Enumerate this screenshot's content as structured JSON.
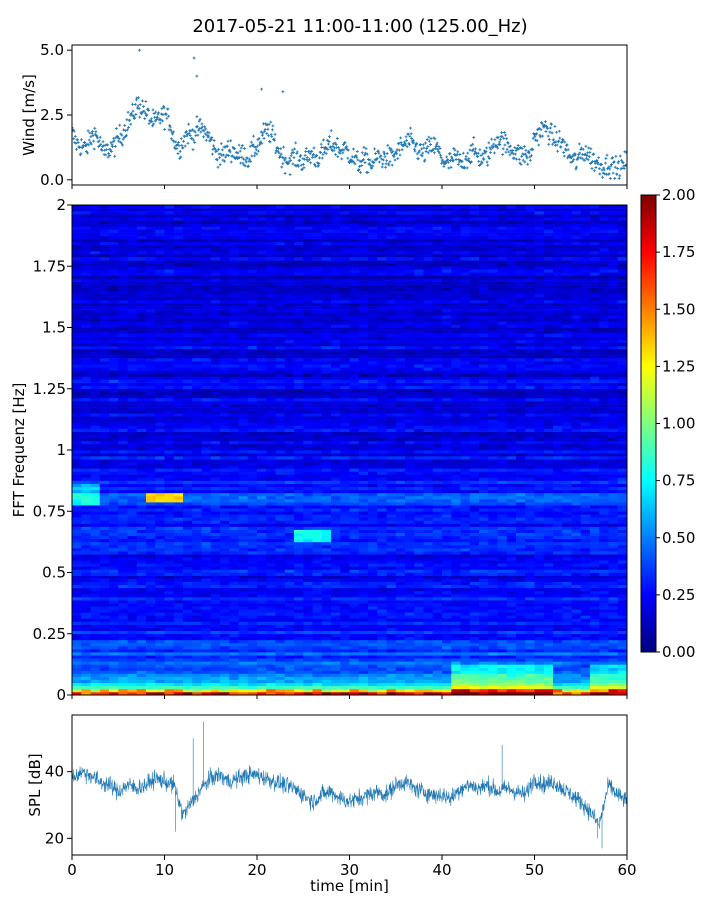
{
  "figure": {
    "title": "2017-05-21 11:00-11:00 (125.00_Hz)"
  },
  "chart_data": [
    {
      "type": "scatter",
      "name": "wind-panel",
      "ylabel": "Wind [m/s]",
      "xlim": [
        0,
        60
      ],
      "ylim": [
        -0.2,
        5.2
      ],
      "yticks": [
        0.0,
        2.5,
        5.0
      ],
      "ytick_labels": [
        "0.0",
        "2.5",
        "5.0"
      ],
      "marker": "+",
      "color": "#1f77b4",
      "x": [
        0,
        0.5,
        1,
        1.5,
        2,
        2.5,
        3,
        3.5,
        4,
        4.5,
        5,
        5.5,
        6,
        6.5,
        7,
        7.5,
        8,
        8.5,
        9,
        9.5,
        10,
        10.5,
        11,
        11.5,
        12,
        12.5,
        13,
        13.5,
        14,
        14.5,
        15,
        15.5,
        16,
        16.5,
        17,
        17.5,
        18,
        18.5,
        19,
        19.5,
        20,
        20.5,
        21,
        21.5,
        22,
        22.5,
        23,
        23.5,
        24,
        24.5,
        25,
        25.5,
        26,
        26.5,
        27,
        27.5,
        28,
        28.5,
        29,
        29.5,
        30,
        30.5,
        31,
        31.5,
        32,
        32.5,
        33,
        33.5,
        34,
        34.5,
        35,
        35.5,
        36,
        36.5,
        37,
        37.5,
        38,
        38.5,
        39,
        39.5,
        40,
        40.5,
        41,
        41.5,
        42,
        42.5,
        43,
        43.5,
        44,
        44.5,
        45,
        45.5,
        46,
        46.5,
        47,
        47.5,
        48,
        48.5,
        49,
        49.5,
        50,
        50.5,
        51,
        51.5,
        52,
        52.5,
        53,
        53.5,
        54,
        54.5,
        55,
        55.5,
        56,
        56.5,
        57,
        57.5,
        58,
        58.5,
        59,
        59.5,
        60
      ],
      "y": [
        1.8,
        1.4,
        1.3,
        1.2,
        1.6,
        1.8,
        1.4,
        1.0,
        1.2,
        1.3,
        1.6,
        1.8,
        2.2,
        2.4,
        2.9,
        2.8,
        2.6,
        2.3,
        2.2,
        2.4,
        2.5,
        2.3,
        1.6,
        1.2,
        1.5,
        1.8,
        1.7,
        1.9,
        2.0,
        1.8,
        1.5,
        1.1,
        0.9,
        1.0,
        1.2,
        1.1,
        0.9,
        1.0,
        0.8,
        1.1,
        1.3,
        1.6,
        1.9,
        1.8,
        1.4,
        1.0,
        0.8,
        0.7,
        0.9,
        0.8,
        0.7,
        0.9,
        1.0,
        0.8,
        1.0,
        1.2,
        1.4,
        1.3,
        1.1,
        1.2,
        1.0,
        0.8,
        0.6,
        0.8,
        0.7,
        0.6,
        0.9,
        0.8,
        0.9,
        0.8,
        1.0,
        1.2,
        1.4,
        1.5,
        1.3,
        1.1,
        1.0,
        1.2,
        1.3,
        1.2,
        0.8,
        0.6,
        0.7,
        0.9,
        0.6,
        0.8,
        1.0,
        1.1,
        0.9,
        0.8,
        1.0,
        1.3,
        1.6,
        1.5,
        1.3,
        1.2,
        1.1,
        0.9,
        1.0,
        0.8,
        1.7,
        1.8,
        2.0,
        1.9,
        1.6,
        1.5,
        1.4,
        1.1,
        0.8,
        0.7,
        1.0,
        1.1,
        0.9,
        0.7,
        0.6,
        0.5,
        0.6,
        0.5,
        0.4,
        0.5,
        0.8
      ],
      "outliers_x": [
        7.3,
        13.2,
        13.5,
        20.5,
        22.8
      ],
      "outliers_y": [
        5.0,
        4.7,
        4.0,
        3.5,
        3.4
      ]
    },
    {
      "type": "heatmap",
      "name": "spectrogram-panel",
      "ylabel": "FFT Frequenz [Hz]",
      "xlim": [
        0,
        60
      ],
      "ylim": [
        0,
        2
      ],
      "yticks": [
        0,
        0.25,
        0.5,
        0.75,
        1,
        1.25,
        1.5,
        1.75,
        2
      ],
      "ytick_labels": [
        "0",
        "0.25",
        "0.5",
        "0.75",
        "1",
        "1.25",
        "1.5",
        "1.75",
        "2"
      ],
      "colormap": "jet",
      "colorbar_range": [
        0.0,
        2.0
      ],
      "colorbar_ticks": [
        "0.00",
        "0.25",
        "0.50",
        "0.75",
        "1.00",
        "1.25",
        "1.50",
        "1.75",
        "2.00"
      ],
      "colors": [
        "#00007f",
        "#0000ff",
        "#007fff",
        "#00ffff",
        "#7fff7f",
        "#ffff00",
        "#ff7f00",
        "#ff0000",
        "#7f0000"
      ],
      "freq_profile_f": [
        0,
        0.02,
        0.05,
        0.1,
        0.2,
        0.3,
        0.5,
        0.7,
        0.8,
        0.85,
        1.0,
        1.5,
        2.0
      ],
      "freq_profile_v": [
        1.6,
        1.0,
        0.55,
        0.45,
        0.35,
        0.3,
        0.25,
        0.3,
        0.38,
        0.3,
        0.22,
        0.2,
        0.18
      ]
    },
    {
      "type": "line",
      "name": "spl-panel",
      "ylabel": "SPL [dB]",
      "xlabel": "time [min]",
      "xlim": [
        0,
        60
      ],
      "ylim": [
        15,
        57
      ],
      "yticks": [
        20,
        40
      ],
      "ytick_labels": [
        "20",
        "40"
      ],
      "xticks": [
        0,
        10,
        20,
        30,
        40,
        50,
        60
      ],
      "xtick_labels": [
        "0",
        "10",
        "20",
        "30",
        "40",
        "50",
        "60"
      ],
      "color": "#1f77b4",
      "x": [
        0,
        1,
        2,
        3,
        4,
        5,
        6,
        7,
        8,
        9,
        10,
        11,
        12,
        13,
        14,
        15,
        16,
        17,
        18,
        19,
        20,
        21,
        22,
        23,
        24,
        25,
        26,
        27,
        28,
        29,
        30,
        31,
        32,
        33,
        34,
        35,
        36,
        37,
        38,
        39,
        40,
        41,
        42,
        43,
        44,
        45,
        46,
        47,
        48,
        49,
        50,
        51,
        52,
        53,
        54,
        55,
        56,
        57,
        58,
        59,
        60
      ],
      "y": [
        38,
        40,
        39,
        37,
        36,
        34,
        36,
        35,
        36,
        38,
        37,
        36,
        27,
        31,
        35,
        38,
        39,
        37,
        38,
        39,
        39,
        38,
        37,
        36,
        35,
        33,
        31,
        33,
        34,
        32,
        31,
        32,
        33,
        34,
        33,
        36,
        37,
        35,
        34,
        33,
        33,
        32,
        35,
        36,
        35,
        36,
        34,
        35,
        34,
        33,
        38,
        36,
        37,
        35,
        33,
        31,
        28,
        24,
        36,
        33,
        31
      ],
      "band": 4
    }
  ]
}
